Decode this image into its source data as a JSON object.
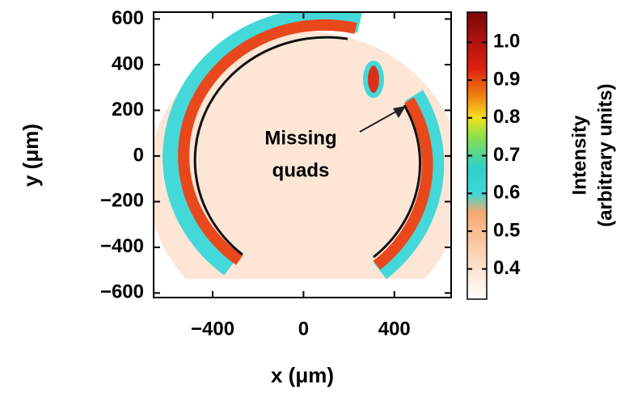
{
  "chart_data": {
    "type": "heatmap",
    "xlabel": "x (μm)",
    "ylabel": "y (μm)",
    "xlim": [
      -660,
      650
    ],
    "ylim": [
      -620,
      630
    ],
    "xticks": [
      {
        "value": -400,
        "label": "−400"
      },
      0,
      400
    ],
    "yticks": [
      600,
      400,
      200,
      0,
      {
        "value": -200,
        "label": "−200"
      },
      {
        "value": -400,
        "label": "−400"
      },
      {
        "value": -600,
        "label": "−600"
      }
    ],
    "annotation": [
      "Missing",
      "quads"
    ],
    "colorbar": {
      "label": [
        "Intensity",
        "(arbitrary units)"
      ],
      "lim": [
        0.32,
        1.08
      ],
      "ticks": [
        0.4,
        0.5,
        0.6,
        0.7,
        0.8,
        0.9,
        {
          "value": 1.0,
          "label": "1.0"
        }
      ],
      "colormap": [
        {
          "value": 0.32,
          "color": "#ffffff"
        },
        {
          "value": 0.45,
          "color": "#fbd0b0"
        },
        {
          "value": 0.55,
          "color": "#f5a870"
        },
        {
          "value": 0.6,
          "color": "#3dd8d8"
        },
        {
          "value": 0.67,
          "color": "#30d0c8"
        },
        {
          "value": 0.75,
          "color": "#8be04a"
        },
        {
          "value": 0.8,
          "color": "#f2e020"
        },
        {
          "value": 0.86,
          "color": "#f08010"
        },
        {
          "value": 0.93,
          "color": "#e02010"
        },
        {
          "value": 1.08,
          "color": "#7a0808"
        }
      ]
    }
  }
}
